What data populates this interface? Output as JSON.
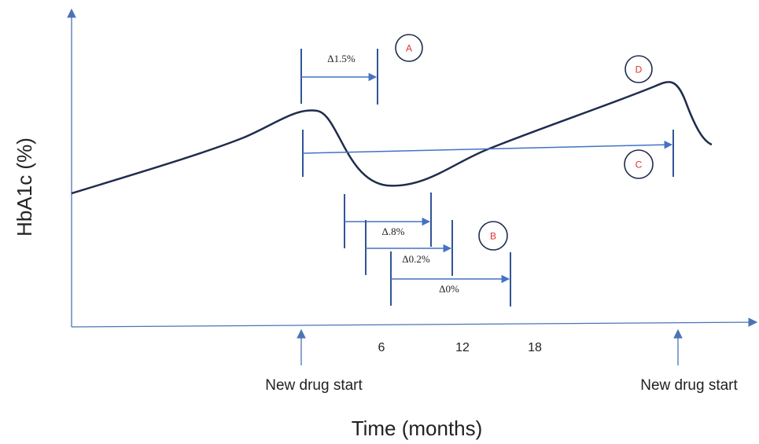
{
  "axes": {
    "y_label": "HbA1c (%)",
    "x_label": "Time (months)",
    "ticks": [
      "6",
      "12",
      "18"
    ]
  },
  "markers": {
    "drug_start_1": "New drug start",
    "drug_start_2": "New drug start"
  },
  "intervals": {
    "a": "Δ1.5%",
    "b1": "Δ.8%",
    "b2": "Δ0.2%",
    "b3": "Δ0%"
  },
  "circles": {
    "a": "A",
    "b": "B",
    "c": "C",
    "d": "D"
  },
  "colors": {
    "axis": "#4a74b5",
    "curve": "#1f2d4d",
    "circle_text": "#e03030"
  }
}
